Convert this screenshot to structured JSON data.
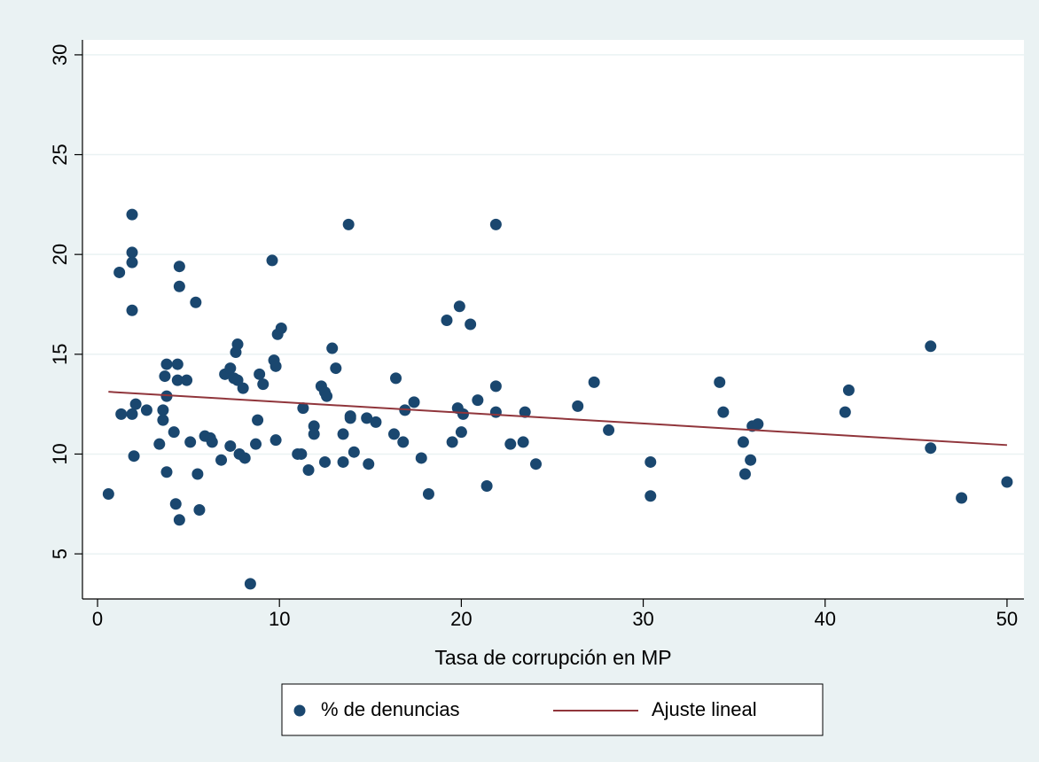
{
  "chart_data": {
    "type": "scatter",
    "xlabel": "Tasa de corrupción en MP",
    "xlim": [
      -0.83,
      50.93
    ],
    "ylim": [
      2.74,
      30.75
    ],
    "xticks": [
      0,
      10,
      20,
      30,
      40,
      50
    ],
    "yticks": [
      5,
      10,
      15,
      20,
      25,
      30
    ],
    "grid": true,
    "legend": "bottom",
    "series": [
      {
        "name": "% de denuncias",
        "type": "scatter",
        "color": "#1a476f",
        "x": [
          0.6,
          1.2,
          1.3,
          1.9,
          1.9,
          1.9,
          1.9,
          1.9,
          2.0,
          2.1,
          2.7,
          3.4,
          3.6,
          3.6,
          3.7,
          3.8,
          3.8,
          3.8,
          4.2,
          4.3,
          4.4,
          4.4,
          4.5,
          4.5,
          4.5,
          4.9,
          5.1,
          5.4,
          5.5,
          5.6,
          5.9,
          6.2,
          6.3,
          6.8,
          7.0,
          7.3,
          7.3,
          7.5,
          7.6,
          7.7,
          7.7,
          7.8,
          8.0,
          8.1,
          8.4,
          8.7,
          8.8,
          8.9,
          9.1,
          9.6,
          9.7,
          9.8,
          9.8,
          9.9,
          10.1,
          11.0,
          11.2,
          11.3,
          11.6,
          11.9,
          11.9,
          12.3,
          12.5,
          12.5,
          12.6,
          12.9,
          13.1,
          13.5,
          13.5,
          13.8,
          13.9,
          13.9,
          14.1,
          14.8,
          14.9,
          15.3,
          16.3,
          16.4,
          16.8,
          16.9,
          17.4,
          17.8,
          18.2,
          19.2,
          19.5,
          19.8,
          19.9,
          20.0,
          20.1,
          20.5,
          20.9,
          21.4,
          21.9,
          21.9,
          21.9,
          22.7,
          23.4,
          23.5,
          24.1,
          26.4,
          27.3,
          28.1,
          30.4,
          30.4,
          34.2,
          34.4,
          35.5,
          35.6,
          35.9,
          36.0,
          36.3,
          41.1,
          41.3,
          45.8,
          45.8,
          47.5,
          50.0
        ],
        "values": [
          8.0,
          19.1,
          12.0,
          22.0,
          20.1,
          19.6,
          17.2,
          12.0,
          9.9,
          12.5,
          12.2,
          10.5,
          11.7,
          12.2,
          13.9,
          14.5,
          12.9,
          9.1,
          11.1,
          7.5,
          14.5,
          13.7,
          19.4,
          18.4,
          6.7,
          13.7,
          10.6,
          17.6,
          9.0,
          7.2,
          10.9,
          10.8,
          10.6,
          9.7,
          14.0,
          14.3,
          10.4,
          13.8,
          15.1,
          15.5,
          13.7,
          10.0,
          13.3,
          9.8,
          3.5,
          10.5,
          11.7,
          14.0,
          13.5,
          19.7,
          14.7,
          14.4,
          10.7,
          16.0,
          16.3,
          10.0,
          10.0,
          12.3,
          9.2,
          11.4,
          11.0,
          13.4,
          13.1,
          9.6,
          12.9,
          15.3,
          14.3,
          11.0,
          9.6,
          21.5,
          11.9,
          11.8,
          10.1,
          11.8,
          9.5,
          11.6,
          11.0,
          13.8,
          10.6,
          12.2,
          12.6,
          9.8,
          8.0,
          16.7,
          10.6,
          12.3,
          17.4,
          11.1,
          12.0,
          16.5,
          12.7,
          8.4,
          21.5,
          13.4,
          12.1,
          10.5,
          10.6,
          12.1,
          9.5,
          12.4,
          13.6,
          11.2,
          9.6,
          7.9,
          13.6,
          12.1,
          10.6,
          9.0,
          9.7,
          11.4,
          11.5,
          12.1,
          13.2,
          15.4,
          10.3,
          7.8,
          8.6
        ]
      },
      {
        "name": "Ajuste lineal",
        "type": "line",
        "color": "#90353b",
        "x": [
          0.6,
          50.0
        ],
        "values": [
          13.12,
          10.45
        ]
      }
    ]
  }
}
